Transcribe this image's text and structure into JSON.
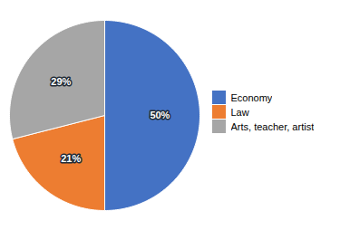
{
  "chart_data": {
    "type": "pie",
    "categories": [
      "Economy",
      "Law",
      "Arts, teacher, artist"
    ],
    "values": [
      50,
      21,
      29
    ],
    "value_labels": [
      "50%",
      "21%",
      "29%"
    ],
    "colors": [
      "#4472C4",
      "#ED7D31",
      "#A6A6A6"
    ],
    "data_labels": true,
    "legend": "right"
  }
}
